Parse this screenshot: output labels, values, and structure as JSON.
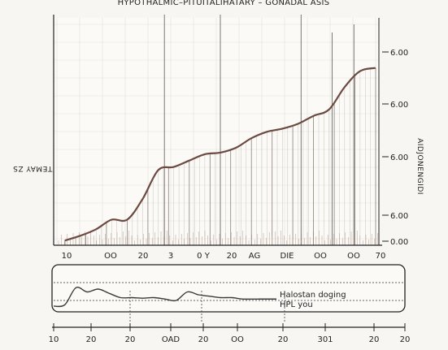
{
  "chart_data": [
    {
      "type": "line",
      "title": "HYPOTHALMIC–PITUITALIHATARY – GONADAL ASIS",
      "ylabel": "TEMAY ZS",
      "ylabel_right": "AIDJONENGIDI",
      "x_tick_labels": [
        "10",
        "OO",
        "20",
        "3",
        "0 Y",
        "20",
        "AG",
        "DIE",
        "OO",
        "OO",
        "70"
      ],
      "y_tick_labels": [
        "6.00",
        "6.00",
        "6.00",
        "6.00",
        "0.00"
      ],
      "ylim": [
        0,
        6
      ],
      "grid": true,
      "series": [
        {
          "x": [
            0,
            0.5,
            1,
            1.5,
            2,
            2.5,
            3,
            3.5,
            4,
            4.5,
            5,
            5.5,
            6,
            6.5,
            7,
            7.5,
            8,
            8.5,
            9,
            9.5,
            10
          ],
          "y": [
            0.1,
            0.25,
            0.45,
            0.75,
            0.75,
            1.4,
            2.3,
            2.4,
            2.6,
            2.8,
            2.85,
            3.0,
            3.3,
            3.5,
            3.6,
            3.75,
            4.0,
            4.2,
            4.9,
            5.4,
            5.5
          ]
        }
      ]
    },
    {
      "type": "line",
      "x_tick_labels": [
        "10",
        "20",
        "20",
        "OAD",
        "20",
        "OO",
        "20",
        "301",
        "20",
        "20"
      ],
      "annotation": "Halostan doging\nHPL you",
      "grid": true,
      "series": [
        {
          "x": [
            0,
            0.5,
            1,
            1.5,
            2,
            2.5,
            3,
            3.5,
            4,
            4.5,
            5,
            5.5,
            6,
            6.5,
            7,
            7.5,
            8,
            8.5,
            9,
            9.5,
            10
          ],
          "y": [
            0.2,
            0.25,
            0.85,
            0.7,
            0.8,
            0.65,
            0.5,
            0.5,
            0.48,
            0.5,
            0.45,
            0.4,
            0.7,
            0.6,
            0.55,
            0.5,
            0.5,
            0.45,
            0.45,
            0.45,
            0.45
          ]
        }
      ]
    }
  ]
}
